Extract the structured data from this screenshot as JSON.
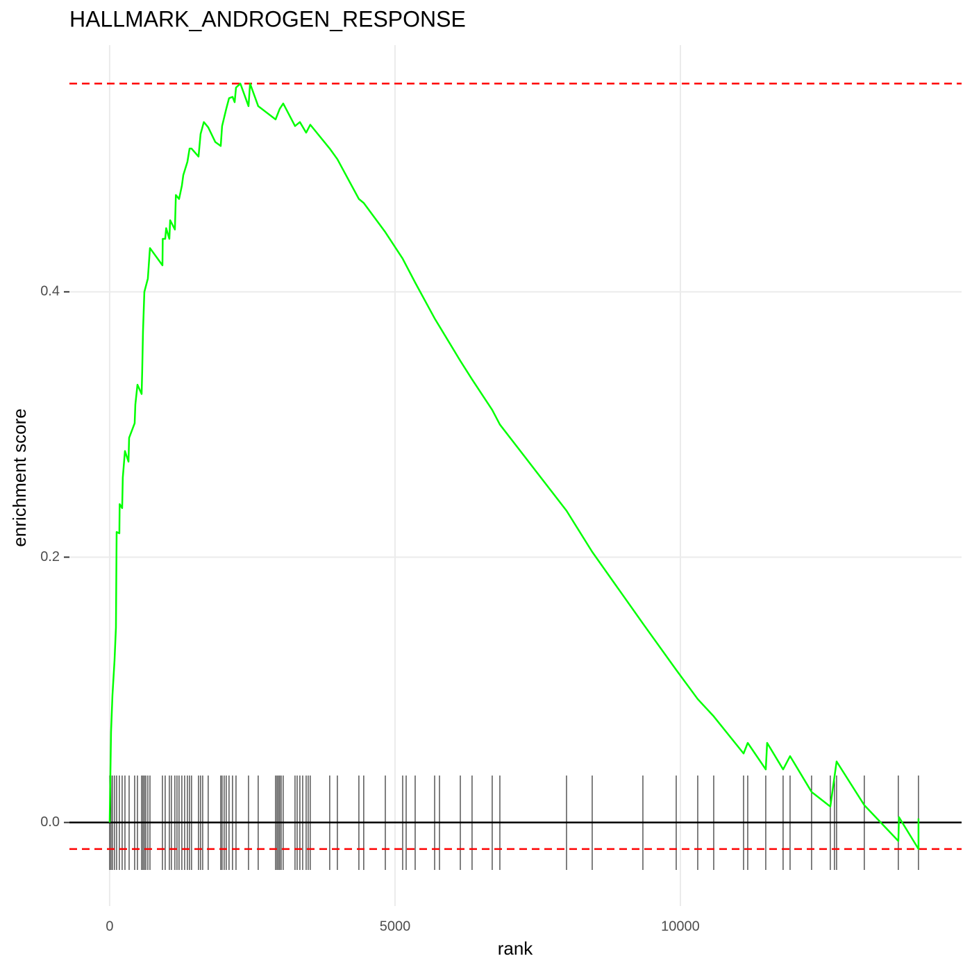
{
  "chart_data": {
    "type": "line",
    "title": "HALLMARK_ANDROGEN_RESPONSE",
    "x_label": "rank",
    "y_label": "enrichment score",
    "xlim": [
      -705,
      14927
    ],
    "ylim": [
      -0.063,
      0.586
    ],
    "xticks": [
      0,
      5000,
      10000
    ],
    "yticks": [
      {
        "value": 0,
        "label": "0.0"
      },
      0.2,
      0.4
    ],
    "grid": true,
    "x": [
      0,
      24,
      49,
      85,
      110,
      122,
      170,
      175,
      219,
      230,
      268,
      330,
      341,
      438,
      450,
      487,
      560,
      570,
      584,
      608,
      669,
      706,
      925,
      930,
      973,
      990,
      1046,
      1060,
      1143,
      1160,
      1216,
      1265,
      1290,
      1362,
      1400,
      1435,
      1557,
      1593,
      1650,
      1727,
      1850,
      1946,
      1970,
      2043,
      2092,
      2153,
      2190,
      2214,
      2290,
      2433,
      2460,
      2603,
      2907,
      2980,
      3041,
      3248,
      3333,
      3443,
      3515,
      3856,
      3990,
      4367,
      4452,
      4830,
      5134,
      5353,
      5694,
      6144,
      6350,
      6703,
      6837,
      8005,
      8455,
      9343,
      9927,
      10304,
      10584,
      11107,
      11180,
      11496,
      11520,
      11800,
      11922,
      12299,
      12627,
      12737,
      13223,
      13819,
      13830,
      14172,
      14172
    ],
    "series": [
      {
        "color": "#00ff00",
        "values": [
          0,
          0.068,
          0.096,
          0.122,
          0.147,
          0.219,
          0.218,
          0.24,
          0.237,
          0.26,
          0.28,
          0.272,
          0.29,
          0.301,
          0.315,
          0.33,
          0.323,
          0.34,
          0.37,
          0.4,
          0.41,
          0.433,
          0.42,
          0.44,
          0.44,
          0.448,
          0.44,
          0.454,
          0.447,
          0.473,
          0.47,
          0.48,
          0.488,
          0.498,
          0.508,
          0.508,
          0.502,
          0.519,
          0.528,
          0.524,
          0.513,
          0.51,
          0.525,
          0.538,
          0.546,
          0.547,
          0.543,
          0.554,
          0.557,
          0.54,
          0.557,
          0.54,
          0.53,
          0.538,
          0.542,
          0.525,
          0.528,
          0.52,
          0.526,
          0.508,
          0.5,
          0.47,
          0.467,
          0.445,
          0.425,
          0.407,
          0.38,
          0.348,
          0.334,
          0.311,
          0.3,
          0.235,
          0.204,
          0.15,
          0.115,
          0.093,
          0.08,
          0.052,
          0.06,
          0.04,
          0.06,
          0.04,
          0.05,
          0.023,
          0.012,
          0.046,
          0.013,
          -0.014,
          0.004,
          -0.02,
          0.003
        ]
      }
    ],
    "hits": [
      0,
      24,
      49,
      85,
      122,
      170,
      219,
      268,
      341,
      438,
      487,
      560,
      584,
      608,
      633,
      669,
      706,
      925,
      973,
      1046,
      1082,
      1143,
      1180,
      1216,
      1265,
      1314,
      1362,
      1399,
      1435,
      1557,
      1593,
      1630,
      1727,
      1946,
      1970,
      2007,
      2043,
      2092,
      2153,
      2214,
      2433,
      2603,
      2907,
      2932,
      2956,
      2980,
      3005,
      3041,
      3248,
      3285,
      3333,
      3382,
      3443,
      3479,
      3515,
      3856,
      3990,
      4367,
      4452,
      4830,
      5134,
      5195,
      5353,
      5694,
      5779,
      6144,
      6350,
      6703,
      6837,
      8005,
      8455,
      9343,
      9927,
      10304,
      10584,
      11107,
      11180,
      11496,
      11800,
      11922,
      12299,
      12627,
      12700,
      12737,
      13223,
      13819,
      14172
    ],
    "hit_color": "#000000",
    "hlines": [
      {
        "value": 0.557,
        "color": "#ff0000",
        "dashed": true
      },
      {
        "value": -0.02,
        "color": "#ff0000",
        "dashed": true
      },
      {
        "value": 0,
        "color": "#000000",
        "dashed": false
      }
    ]
  }
}
